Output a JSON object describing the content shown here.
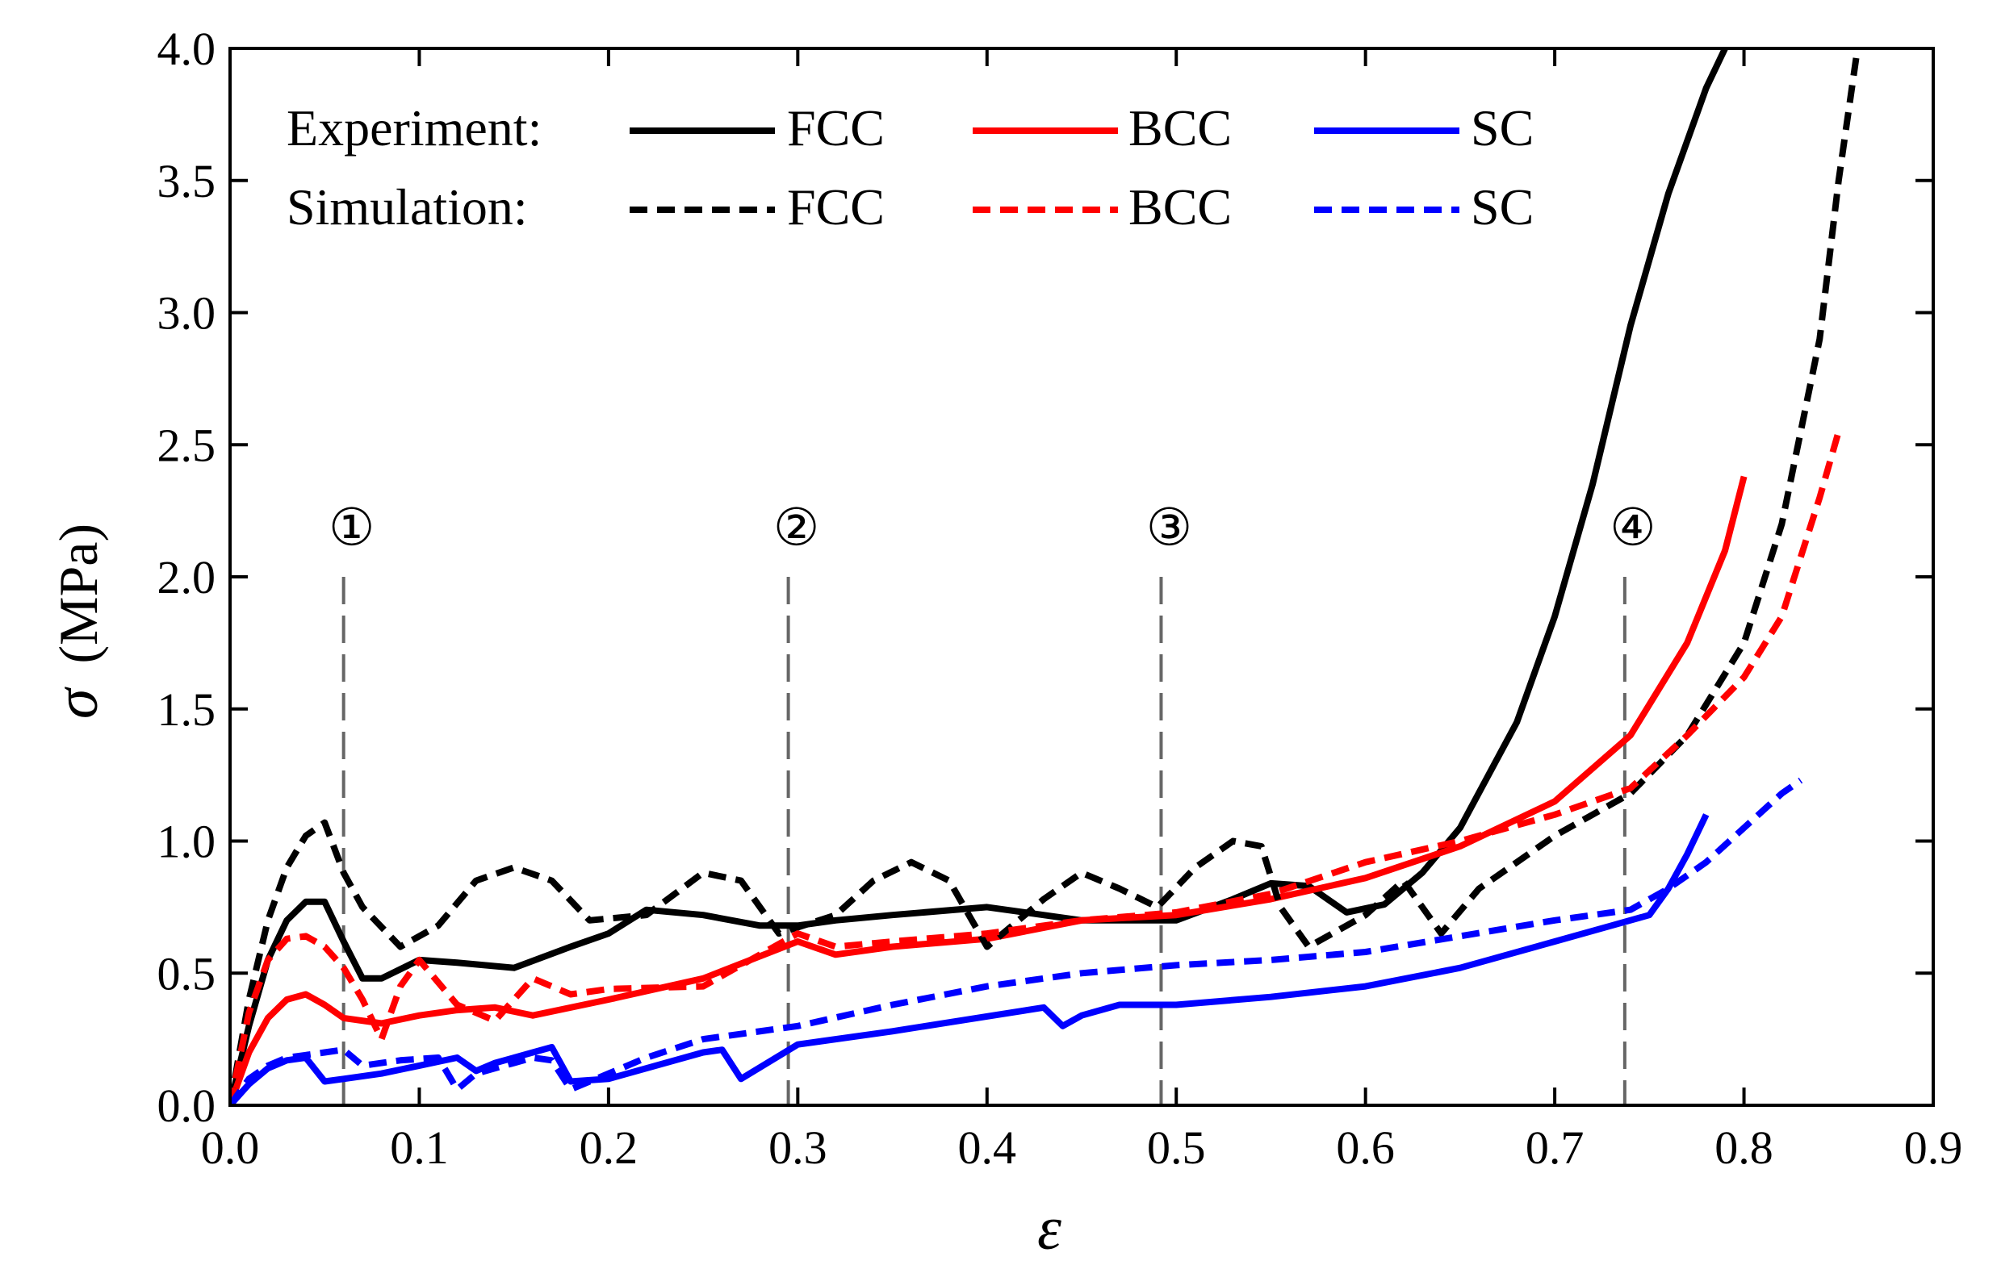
{
  "chart_data": {
    "type": "line",
    "title": "",
    "xlabel": "ε",
    "ylabel_symbol": "σ",
    "ylabel_unit": "(MPa)",
    "xlim": [
      0.0,
      0.9
    ],
    "ylim": [
      0.0,
      4.0
    ],
    "xticks": [
      "0.0",
      "0.1",
      "0.2",
      "0.3",
      "0.4",
      "0.5",
      "0.6",
      "0.7",
      "0.8",
      "0.9"
    ],
    "yticks": [
      "0.0",
      "0.5",
      "1.0",
      "1.5",
      "2.0",
      "2.5",
      "3.0",
      "3.5",
      "4.0"
    ],
    "grid": false,
    "legend": {
      "position": "top-left",
      "rows": [
        {
          "label": "Experiment:",
          "entries": [
            "FCC",
            "BCC",
            "SC"
          ],
          "style": "solid"
        },
        {
          "label": "Simulation:",
          "entries": [
            "FCC",
            "BCC",
            "SC"
          ],
          "style": "dashed"
        }
      ]
    },
    "markers": [
      {
        "label": "①",
        "x": 0.06
      },
      {
        "label": "②",
        "x": 0.295
      },
      {
        "label": "③",
        "x": 0.492
      },
      {
        "label": "④",
        "x": 0.737
      }
    ],
    "series": [
      {
        "name": "Experiment FCC",
        "color": "#000000",
        "style": "solid",
        "x": [
          0.0,
          0.01,
          0.02,
          0.03,
          0.04,
          0.05,
          0.06,
          0.07,
          0.08,
          0.1,
          0.12,
          0.15,
          0.18,
          0.2,
          0.22,
          0.25,
          0.28,
          0.3,
          0.32,
          0.35,
          0.4,
          0.45,
          0.5,
          0.53,
          0.55,
          0.57,
          0.59,
          0.61,
          0.63,
          0.65,
          0.68,
          0.7,
          0.72,
          0.74,
          0.76,
          0.78,
          0.79
        ],
        "y": [
          0.0,
          0.3,
          0.55,
          0.7,
          0.77,
          0.77,
          0.62,
          0.48,
          0.48,
          0.55,
          0.54,
          0.52,
          0.6,
          0.65,
          0.74,
          0.72,
          0.68,
          0.68,
          0.7,
          0.72,
          0.75,
          0.7,
          0.7,
          0.78,
          0.84,
          0.83,
          0.73,
          0.76,
          0.88,
          1.05,
          1.45,
          1.85,
          2.35,
          2.95,
          3.45,
          3.85,
          4.0
        ]
      },
      {
        "name": "Experiment BCC",
        "color": "#ff0000",
        "style": "solid",
        "x": [
          0.0,
          0.01,
          0.02,
          0.03,
          0.04,
          0.05,
          0.06,
          0.08,
          0.1,
          0.12,
          0.14,
          0.16,
          0.2,
          0.25,
          0.3,
          0.32,
          0.35,
          0.4,
          0.45,
          0.5,
          0.55,
          0.6,
          0.65,
          0.7,
          0.74,
          0.77,
          0.79,
          0.8
        ],
        "y": [
          0.0,
          0.2,
          0.33,
          0.4,
          0.42,
          0.38,
          0.33,
          0.31,
          0.34,
          0.36,
          0.37,
          0.34,
          0.4,
          0.48,
          0.62,
          0.57,
          0.6,
          0.63,
          0.7,
          0.72,
          0.78,
          0.86,
          0.98,
          1.15,
          1.4,
          1.75,
          2.1,
          2.38
        ]
      },
      {
        "name": "Experiment SC",
        "color": "#0000ff",
        "style": "solid",
        "x": [
          0.0,
          0.01,
          0.02,
          0.03,
          0.04,
          0.05,
          0.06,
          0.08,
          0.1,
          0.12,
          0.13,
          0.14,
          0.16,
          0.17,
          0.18,
          0.2,
          0.25,
          0.26,
          0.27,
          0.3,
          0.35,
          0.43,
          0.44,
          0.45,
          0.47,
          0.5,
          0.55,
          0.6,
          0.65,
          0.7,
          0.73,
          0.75,
          0.76,
          0.77,
          0.78
        ],
        "y": [
          0.0,
          0.08,
          0.14,
          0.17,
          0.18,
          0.09,
          0.1,
          0.12,
          0.15,
          0.18,
          0.13,
          0.16,
          0.2,
          0.22,
          0.09,
          0.1,
          0.2,
          0.21,
          0.1,
          0.23,
          0.28,
          0.37,
          0.3,
          0.34,
          0.38,
          0.38,
          0.41,
          0.45,
          0.52,
          0.62,
          0.68,
          0.72,
          0.82,
          0.95,
          1.1
        ]
      },
      {
        "name": "Simulation FCC",
        "color": "#000000",
        "style": "dashed",
        "x": [
          0.0,
          0.01,
          0.02,
          0.03,
          0.04,
          0.05,
          0.06,
          0.07,
          0.09,
          0.11,
          0.13,
          0.15,
          0.17,
          0.19,
          0.22,
          0.25,
          0.27,
          0.29,
          0.32,
          0.34,
          0.36,
          0.38,
          0.4,
          0.43,
          0.45,
          0.47,
          0.49,
          0.51,
          0.53,
          0.545,
          0.555,
          0.57,
          0.6,
          0.62,
          0.64,
          0.66,
          0.7,
          0.74,
          0.77,
          0.8,
          0.82,
          0.84,
          0.85,
          0.86
        ],
        "y": [
          0.0,
          0.4,
          0.7,
          0.9,
          1.02,
          1.07,
          0.88,
          0.75,
          0.6,
          0.68,
          0.85,
          0.9,
          0.85,
          0.7,
          0.72,
          0.88,
          0.85,
          0.65,
          0.72,
          0.85,
          0.92,
          0.85,
          0.6,
          0.78,
          0.88,
          0.82,
          0.75,
          0.9,
          1.0,
          0.98,
          0.75,
          0.6,
          0.72,
          0.85,
          0.65,
          0.82,
          1.02,
          1.18,
          1.4,
          1.75,
          2.2,
          2.9,
          3.5,
          4.0
        ]
      },
      {
        "name": "Simulation BCC",
        "color": "#ff0000",
        "style": "dashed",
        "x": [
          0.0,
          0.01,
          0.02,
          0.03,
          0.04,
          0.05,
          0.06,
          0.07,
          0.08,
          0.09,
          0.1,
          0.12,
          0.14,
          0.16,
          0.18,
          0.2,
          0.25,
          0.3,
          0.32,
          0.35,
          0.4,
          0.45,
          0.5,
          0.55,
          0.6,
          0.65,
          0.7,
          0.74,
          0.77,
          0.8,
          0.82,
          0.84,
          0.85
        ],
        "y": [
          0.0,
          0.35,
          0.55,
          0.63,
          0.64,
          0.6,
          0.52,
          0.4,
          0.25,
          0.45,
          0.55,
          0.38,
          0.32,
          0.48,
          0.42,
          0.44,
          0.45,
          0.65,
          0.6,
          0.62,
          0.65,
          0.7,
          0.73,
          0.8,
          0.92,
          1.0,
          1.1,
          1.2,
          1.4,
          1.62,
          1.85,
          2.3,
          2.55
        ]
      },
      {
        "name": "Simulation SC",
        "color": "#0000ff",
        "style": "dashed",
        "x": [
          0.0,
          0.01,
          0.02,
          0.03,
          0.04,
          0.05,
          0.06,
          0.07,
          0.09,
          0.11,
          0.12,
          0.13,
          0.15,
          0.16,
          0.17,
          0.18,
          0.2,
          0.22,
          0.25,
          0.3,
          0.35,
          0.4,
          0.45,
          0.5,
          0.55,
          0.6,
          0.65,
          0.7,
          0.74,
          0.76,
          0.78,
          0.8,
          0.82,
          0.83
        ],
        "y": [
          0.0,
          0.1,
          0.15,
          0.18,
          0.19,
          0.2,
          0.21,
          0.15,
          0.17,
          0.18,
          0.06,
          0.12,
          0.16,
          0.18,
          0.17,
          0.06,
          0.12,
          0.18,
          0.25,
          0.3,
          0.38,
          0.45,
          0.5,
          0.53,
          0.55,
          0.58,
          0.64,
          0.7,
          0.74,
          0.82,
          0.92,
          1.05,
          1.18,
          1.23
        ]
      }
    ]
  }
}
